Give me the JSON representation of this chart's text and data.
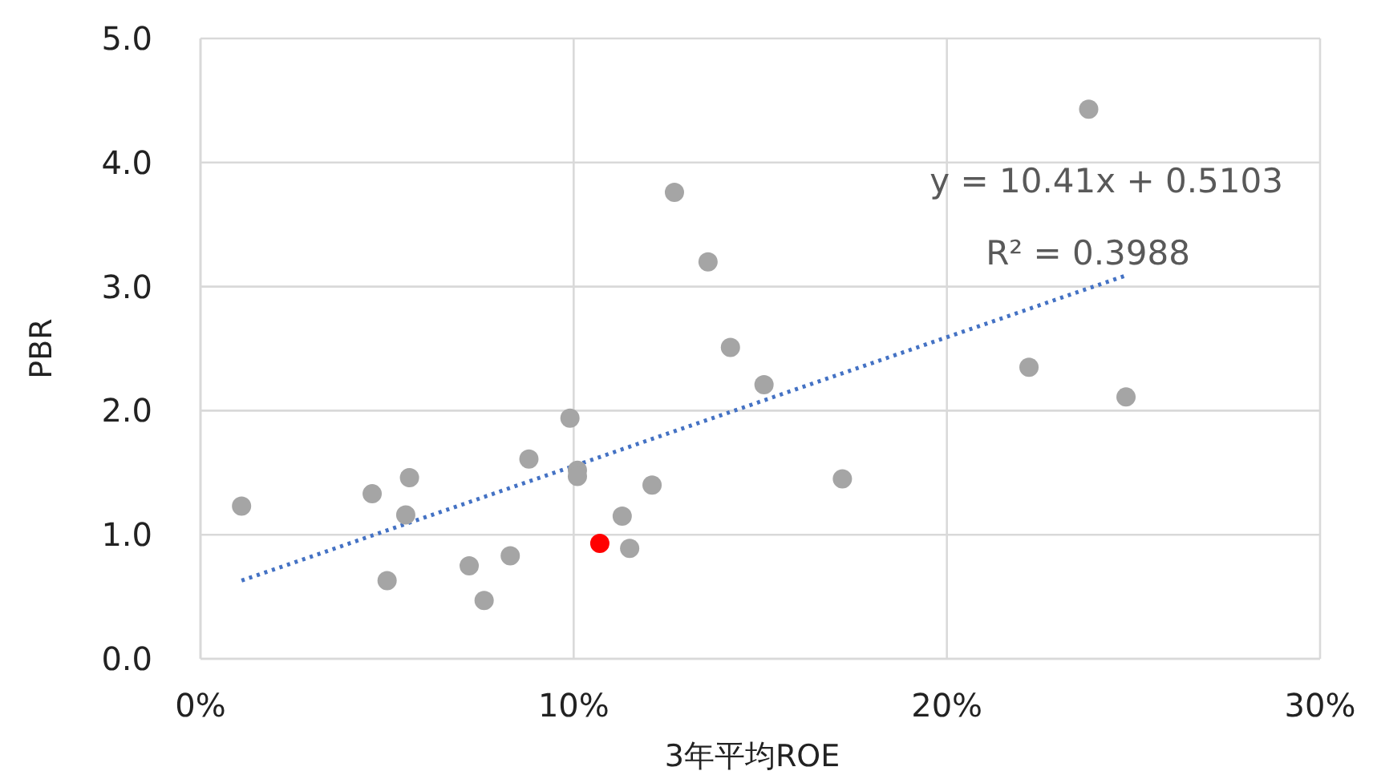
{
  "chart_data": {
    "type": "scatter",
    "xlabel": "3年平均ROE",
    "ylabel": "PBR",
    "xlim": [
      0,
      30
    ],
    "xticks": [
      {
        "value": 0,
        "label": "0%"
      },
      {
        "value": 10,
        "label": "10%"
      },
      {
        "value": 20,
        "label": "20%"
      },
      {
        "value": 30,
        "label": "30%"
      }
    ],
    "ylim": [
      0,
      5
    ],
    "yticks": [
      {
        "value": 0,
        "label": "0.0"
      },
      {
        "value": 1,
        "label": "1.0"
      },
      {
        "value": 2,
        "label": "2.0"
      },
      {
        "value": 3,
        "label": "3.0"
      },
      {
        "value": 4,
        "label": "4.0"
      },
      {
        "value": 5,
        "label": "5.0"
      }
    ],
    "grid": true,
    "series": [
      {
        "color": "#a5a5a5",
        "marker": "circle",
        "x": [
          1.1,
          4.6,
          5.0,
          5.5,
          5.6,
          7.2,
          7.6,
          8.3,
          8.8,
          9.9,
          10.1,
          10.1,
          11.3,
          11.5,
          12.1,
          12.7,
          13.6,
          14.2,
          15.1,
          17.2,
          22.2,
          23.8,
          24.8
        ],
        "values": [
          1.23,
          1.33,
          0.63,
          1.16,
          1.46,
          0.75,
          0.47,
          0.83,
          1.61,
          1.94,
          1.52,
          1.47,
          1.15,
          0.89,
          1.4,
          3.76,
          3.2,
          2.51,
          2.21,
          1.45,
          2.35,
          4.43,
          2.11
        ]
      },
      {
        "color": "#ff0000",
        "marker": "circle",
        "x": [
          10.7
        ],
        "values": [
          0.93
        ]
      },
      {
        "type": "line",
        "color": "#4472c4",
        "line_style": "dotted",
        "x": [
          1.1,
          24.8
        ],
        "values": [
          0.63,
          3.09
        ]
      }
    ],
    "annotations": [
      "y = 10.41x + 0.5103",
      "R² = 0.3988"
    ]
  }
}
